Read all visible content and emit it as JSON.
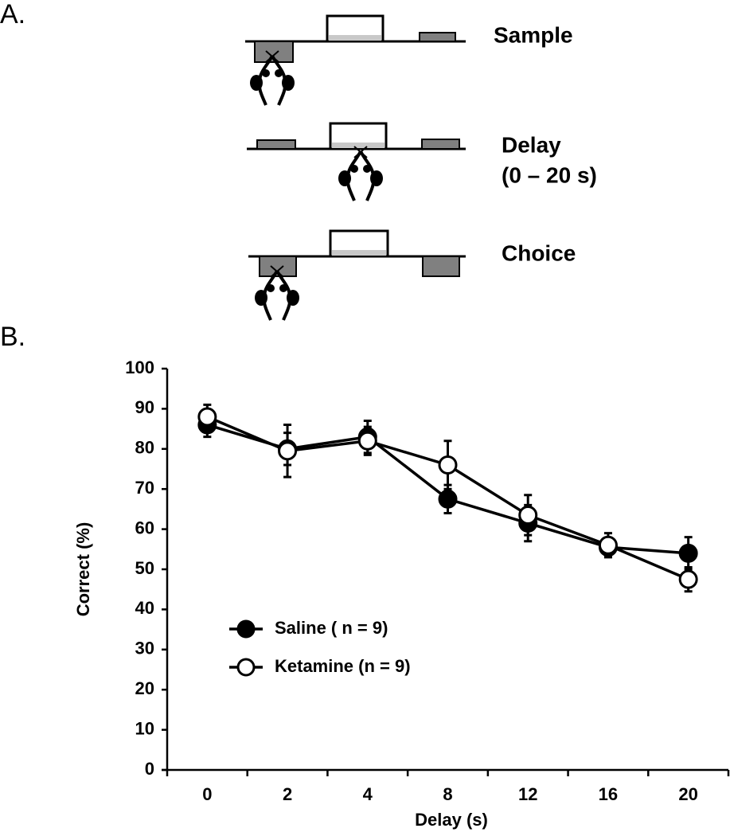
{
  "diagram": {
    "panel_label": "A.",
    "stages": [
      {
        "label": "Sample"
      },
      {
        "label": "Delay",
        "note": "(0 – 20 s)"
      },
      {
        "label": "Choice"
      }
    ]
  },
  "chart_data": {
    "type": "line",
    "panel_label": "B.",
    "x_label": "Delay (s)",
    "y_label": "Correct (%)",
    "categories": [
      "0",
      "2",
      "4",
      "8",
      "12",
      "16",
      "20"
    ],
    "ylim": [
      0,
      100
    ],
    "yticks": [
      0,
      10,
      20,
      30,
      40,
      50,
      60,
      70,
      80,
      90,
      100
    ],
    "grid": false,
    "legend_position": "lower left",
    "series": [
      {
        "name": "Saline ( n = 9)",
        "color": "#000000",
        "marker_fill": "#000000",
        "values": [
          86,
          80,
          83,
          67.5,
          61.5,
          55.5,
          54
        ],
        "errors": [
          3,
          4,
          4,
          3.5,
          4.5,
          2,
          4
        ]
      },
      {
        "name": "Ketamine (n = 9)",
        "color": "#000000",
        "marker_fill": "#ffffff",
        "values": [
          88,
          79.5,
          82,
          76,
          63.5,
          56,
          47.5
        ],
        "errors": [
          3,
          6.5,
          3.5,
          6,
          5,
          3,
          3
        ]
      }
    ]
  }
}
